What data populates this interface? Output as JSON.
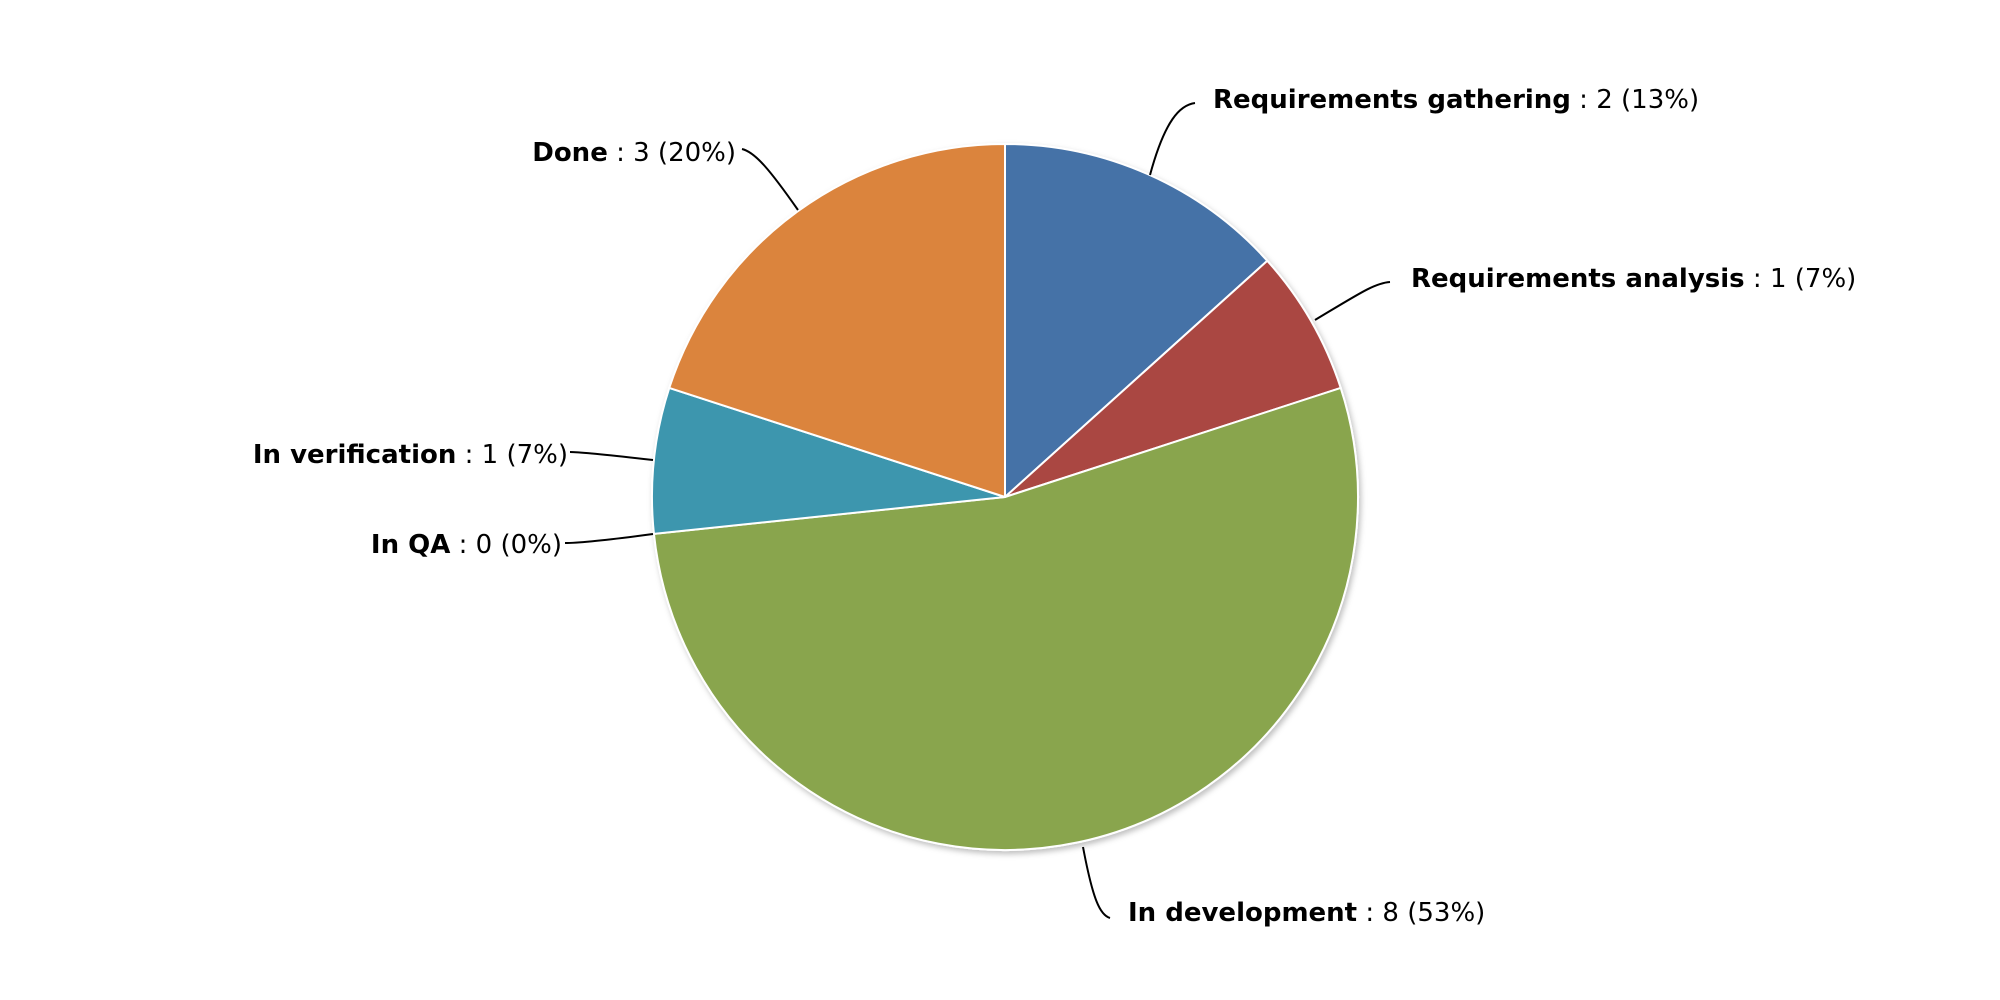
{
  "chart_data": {
    "type": "pie",
    "title": "",
    "slices": [
      {
        "label": "Requirements gathering",
        "value": 2,
        "percent": "13%",
        "color": "#4572a7"
      },
      {
        "label": "Requirements analysis",
        "value": 1,
        "percent": "7%",
        "color": "#aa4643"
      },
      {
        "label": "In development",
        "value": 8,
        "percent": "53%",
        "color": "#89a54e"
      },
      {
        "label": "In QA",
        "value": 0,
        "percent": "0%",
        "color": "#80699b"
      },
      {
        "label": "In verification",
        "value": 1,
        "percent": "7%",
        "color": "#3d96ae"
      },
      {
        "label": "Done",
        "value": 3,
        "percent": "20%",
        "color": "#db843d"
      }
    ]
  }
}
